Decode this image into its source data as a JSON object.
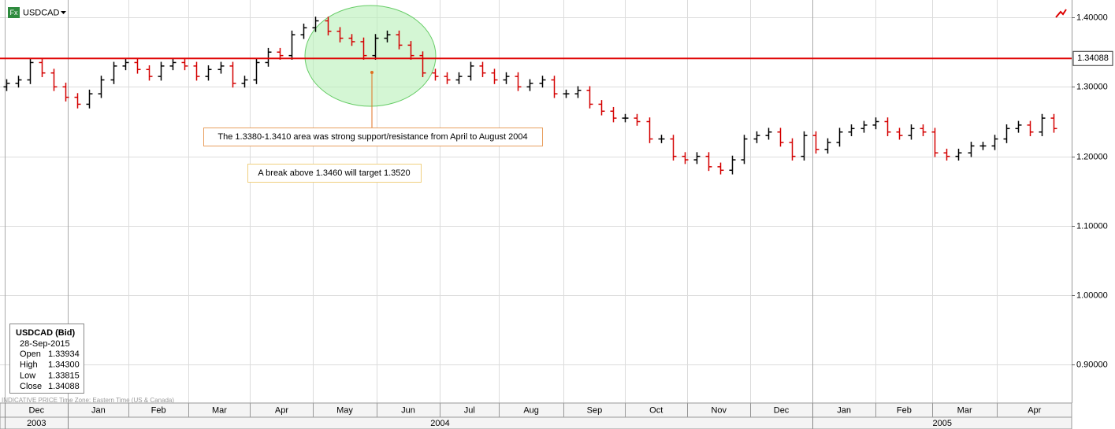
{
  "chart_data": {
    "type": "ohlc",
    "title": "USDCAD",
    "icon_label": "Fx",
    "footer": "INDICATIVE PRICE   Time Zone: Eastern Time (US & Canada)",
    "up_color": "#000000",
    "down_color": "#d40000",
    "grid": true,
    "open": [
      1.3,
      1.305,
      1.31,
      1.335,
      1.32,
      1.3,
      1.285,
      1.275,
      1.29,
      1.31,
      1.33,
      1.335,
      1.325,
      1.315,
      1.33,
      1.335,
      1.33,
      1.315,
      1.325,
      1.33,
      1.305,
      1.31,
      1.335,
      1.35,
      1.345,
      1.375,
      1.385,
      1.395,
      1.38,
      1.37,
      1.365,
      1.345,
      1.37,
      1.375,
      1.36,
      1.345,
      1.32,
      1.315,
      1.31,
      1.315,
      1.33,
      1.32,
      1.31,
      1.315,
      1.3,
      1.305,
      1.31,
      1.29,
      1.29,
      1.295,
      1.275,
      1.265,
      1.255,
      1.255,
      1.25,
      1.225,
      1.225,
      1.2,
      1.195,
      1.2,
      1.185,
      1.18,
      1.195,
      1.225,
      1.23,
      1.235,
      1.22,
      1.2,
      1.23,
      1.21,
      1.22,
      1.235,
      1.24,
      1.245,
      1.25,
      1.235,
      1.23,
      1.24,
      1.235,
      1.205,
      1.2,
      1.205,
      1.215,
      1.215,
      1.225,
      1.24,
      1.245,
      1.235,
      1.255
    ],
    "high": [
      1.311,
      1.316,
      1.341,
      1.341,
      1.326,
      1.306,
      1.291,
      1.296,
      1.316,
      1.336,
      1.341,
      1.341,
      1.331,
      1.336,
      1.341,
      1.341,
      1.336,
      1.331,
      1.336,
      1.336,
      1.316,
      1.341,
      1.356,
      1.356,
      1.381,
      1.391,
      1.401,
      1.401,
      1.386,
      1.376,
      1.371,
      1.376,
      1.381,
      1.381,
      1.366,
      1.351,
      1.326,
      1.321,
      1.321,
      1.336,
      1.336,
      1.326,
      1.321,
      1.321,
      1.311,
      1.316,
      1.316,
      1.296,
      1.301,
      1.301,
      1.281,
      1.271,
      1.261,
      1.261,
      1.256,
      1.231,
      1.231,
      1.206,
      1.206,
      1.206,
      1.191,
      1.201,
      1.231,
      1.236,
      1.241,
      1.241,
      1.226,
      1.236,
      1.236,
      1.226,
      1.241,
      1.246,
      1.251,
      1.256,
      1.256,
      1.241,
      1.246,
      1.246,
      1.241,
      1.211,
      1.211,
      1.221,
      1.221,
      1.231,
      1.246,
      1.251,
      1.251,
      1.261,
      1.261
    ],
    "low": [
      1.294,
      1.299,
      1.304,
      1.314,
      1.294,
      1.279,
      1.269,
      1.269,
      1.284,
      1.304,
      1.324,
      1.319,
      1.309,
      1.309,
      1.324,
      1.324,
      1.309,
      1.309,
      1.319,
      1.299,
      1.299,
      1.304,
      1.329,
      1.339,
      1.339,
      1.369,
      1.379,
      1.374,
      1.364,
      1.359,
      1.339,
      1.339,
      1.364,
      1.354,
      1.339,
      1.314,
      1.309,
      1.304,
      1.304,
      1.309,
      1.314,
      1.304,
      1.304,
      1.294,
      1.294,
      1.299,
      1.284,
      1.284,
      1.284,
      1.269,
      1.259,
      1.249,
      1.249,
      1.244,
      1.219,
      1.219,
      1.194,
      1.189,
      1.189,
      1.179,
      1.174,
      1.174,
      1.189,
      1.219,
      1.224,
      1.214,
      1.194,
      1.194,
      1.204,
      1.204,
      1.214,
      1.229,
      1.234,
      1.239,
      1.229,
      1.224,
      1.224,
      1.229,
      1.199,
      1.194,
      1.194,
      1.199,
      1.209,
      1.209,
      1.219,
      1.234,
      1.229,
      1.229,
      1.234
    ],
    "close": [
      1.305,
      1.31,
      1.335,
      1.32,
      1.3,
      1.285,
      1.275,
      1.29,
      1.31,
      1.33,
      1.335,
      1.325,
      1.315,
      1.33,
      1.335,
      1.33,
      1.315,
      1.325,
      1.33,
      1.305,
      1.31,
      1.335,
      1.35,
      1.345,
      1.375,
      1.385,
      1.395,
      1.38,
      1.37,
      1.365,
      1.345,
      1.37,
      1.375,
      1.36,
      1.345,
      1.32,
      1.315,
      1.31,
      1.315,
      1.33,
      1.32,
      1.31,
      1.315,
      1.3,
      1.305,
      1.31,
      1.29,
      1.29,
      1.295,
      1.275,
      1.265,
      1.255,
      1.255,
      1.25,
      1.225,
      1.225,
      1.2,
      1.195,
      1.2,
      1.185,
      1.18,
      1.195,
      1.225,
      1.23,
      1.235,
      1.22,
      1.2,
      1.23,
      1.21,
      1.22,
      1.235,
      1.24,
      1.245,
      1.25,
      1.235,
      1.23,
      1.24,
      1.235,
      1.205,
      1.2,
      1.205,
      1.215,
      1.215,
      1.225,
      1.24,
      1.245,
      1.235,
      1.255,
      1.24
    ],
    "xlim": [
      -0.5,
      89.5
    ],
    "xticks": [
      {
        "value": -0.1,
        "label": "Dec"
      },
      {
        "value": 5.2,
        "label": "Jan"
      },
      {
        "value": 10.3,
        "label": "Feb"
      },
      {
        "value": 15.3,
        "label": "Mar"
      },
      {
        "value": 20.5,
        "label": "Apr"
      },
      {
        "value": 25.8,
        "label": "May"
      },
      {
        "value": 31.1,
        "label": "Jun"
      },
      {
        "value": 36.4,
        "label": "Jul"
      },
      {
        "value": 41.4,
        "label": "Aug"
      },
      {
        "value": 46.8,
        "label": "Sep"
      },
      {
        "value": 52.0,
        "label": "Oct"
      },
      {
        "value": 57.2,
        "label": "Nov"
      },
      {
        "value": 62.5,
        "label": "Dec"
      },
      {
        "value": 67.7,
        "label": "Jan"
      },
      {
        "value": 73.0,
        "label": "Feb"
      },
      {
        "value": 77.8,
        "label": "Mar"
      },
      {
        "value": 83.2,
        "label": "Apr"
      }
    ],
    "years": [
      {
        "value": -0.1,
        "label": "2003"
      },
      {
        "value": 5.2,
        "label": "2004"
      },
      {
        "value": 67.7,
        "label": "2005"
      }
    ],
    "ylim": [
      0.845,
      1.425
    ],
    "yticks": [
      {
        "value": 0.9,
        "label": "0.90000"
      },
      {
        "value": 1.0,
        "label": "1.00000"
      },
      {
        "value": 1.1,
        "label": "1.10000"
      },
      {
        "value": 1.2,
        "label": "1.20000"
      },
      {
        "value": 1.3,
        "label": "1.30000"
      },
      {
        "value": 1.4,
        "label": "1.40000"
      }
    ],
    "hline": {
      "value": 1.34088,
      "color": "#e00000"
    },
    "annotations": [
      "The 1.3380-1.3410 area was strong support/resistance from April to August 2004",
      "A break above 1.3460 will target 1.3520"
    ],
    "info": {
      "title": "USDCAD (Bid)",
      "date": "28-Sep-2015",
      "rows": [
        [
          "Open",
          "1.33934"
        ],
        [
          "High",
          "1.34300"
        ],
        [
          "Low",
          "1.33815"
        ],
        [
          "Close",
          "1.34088"
        ]
      ]
    }
  }
}
